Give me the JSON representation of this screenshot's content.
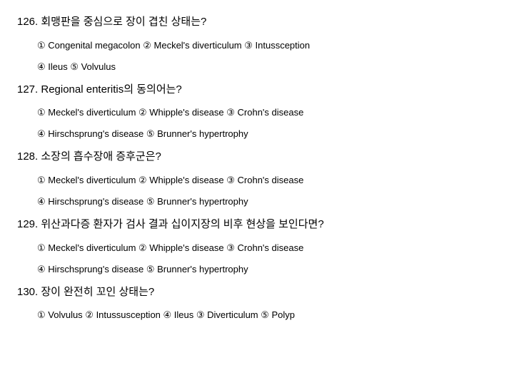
{
  "questions": [
    {
      "number": "126.",
      "text": "회맹판을 중심으로 장이 겹친 상태는?",
      "lines": [
        [
          {
            "n": "①",
            "t": "Congenital megacolon"
          },
          {
            "n": "②",
            "t": "Meckel's diverticulum"
          },
          {
            "n": "③",
            "t": "Intussception"
          }
        ],
        [
          {
            "n": "④",
            "t": "Ileus"
          },
          {
            "n": "⑤",
            "t": "Volvulus"
          }
        ]
      ]
    },
    {
      "number": "127.",
      "text": "Regional enteritis의 동의어는?",
      "lines": [
        [
          {
            "n": "①",
            "t": "Meckel's diverticulum"
          },
          {
            "n": "②",
            "t": "Whipple's disease"
          },
          {
            "n": "③",
            "t": "Crohn's disease"
          }
        ],
        [
          {
            "n": "④",
            "t": "Hirschsprung's disease"
          },
          {
            "n": "⑤",
            "t": "Brunner's hypertrophy"
          }
        ]
      ]
    },
    {
      "number": "128.",
      "text": "소장의 흡수장애 증후군은?",
      "lines": [
        [
          {
            "n": "①",
            "t": "Meckel's diverticulum"
          },
          {
            "n": "②",
            "t": "Whipple's disease"
          },
          {
            "n": "③",
            "t": "Crohn's disease"
          }
        ],
        [
          {
            "n": "④",
            "t": "Hirschsprung's disease"
          },
          {
            "n": "⑤",
            "t": "Brunner's hypertrophy"
          }
        ]
      ]
    },
    {
      "number": "129.",
      "text": "위산과다증 환자가 검사 결과 십이지장의 비후 현상을 보인다면?",
      "lines": [
        [
          {
            "n": "①",
            "t": "Meckel's diverticulum"
          },
          {
            "n": "②",
            "t": "Whipple's disease"
          },
          {
            "n": "③",
            "t": "Crohn's disease"
          }
        ],
        [
          {
            "n": "④",
            "t": "Hirschsprung's disease"
          },
          {
            "n": "⑤",
            "t": "Brunner's hypertrophy"
          }
        ]
      ]
    },
    {
      "number": "130.",
      "text": "장이 완전히 꼬인 상태는?",
      "lines": [
        [
          {
            "n": "①",
            "t": "Volvulus"
          },
          {
            "n": "②",
            "t": "Intussusception"
          },
          {
            "n": "④",
            "t": "Ileus"
          },
          {
            "n": "③",
            "t": "Diverticulum"
          },
          {
            "n": "⑤",
            "t": "Polyp"
          }
        ]
      ]
    }
  ]
}
